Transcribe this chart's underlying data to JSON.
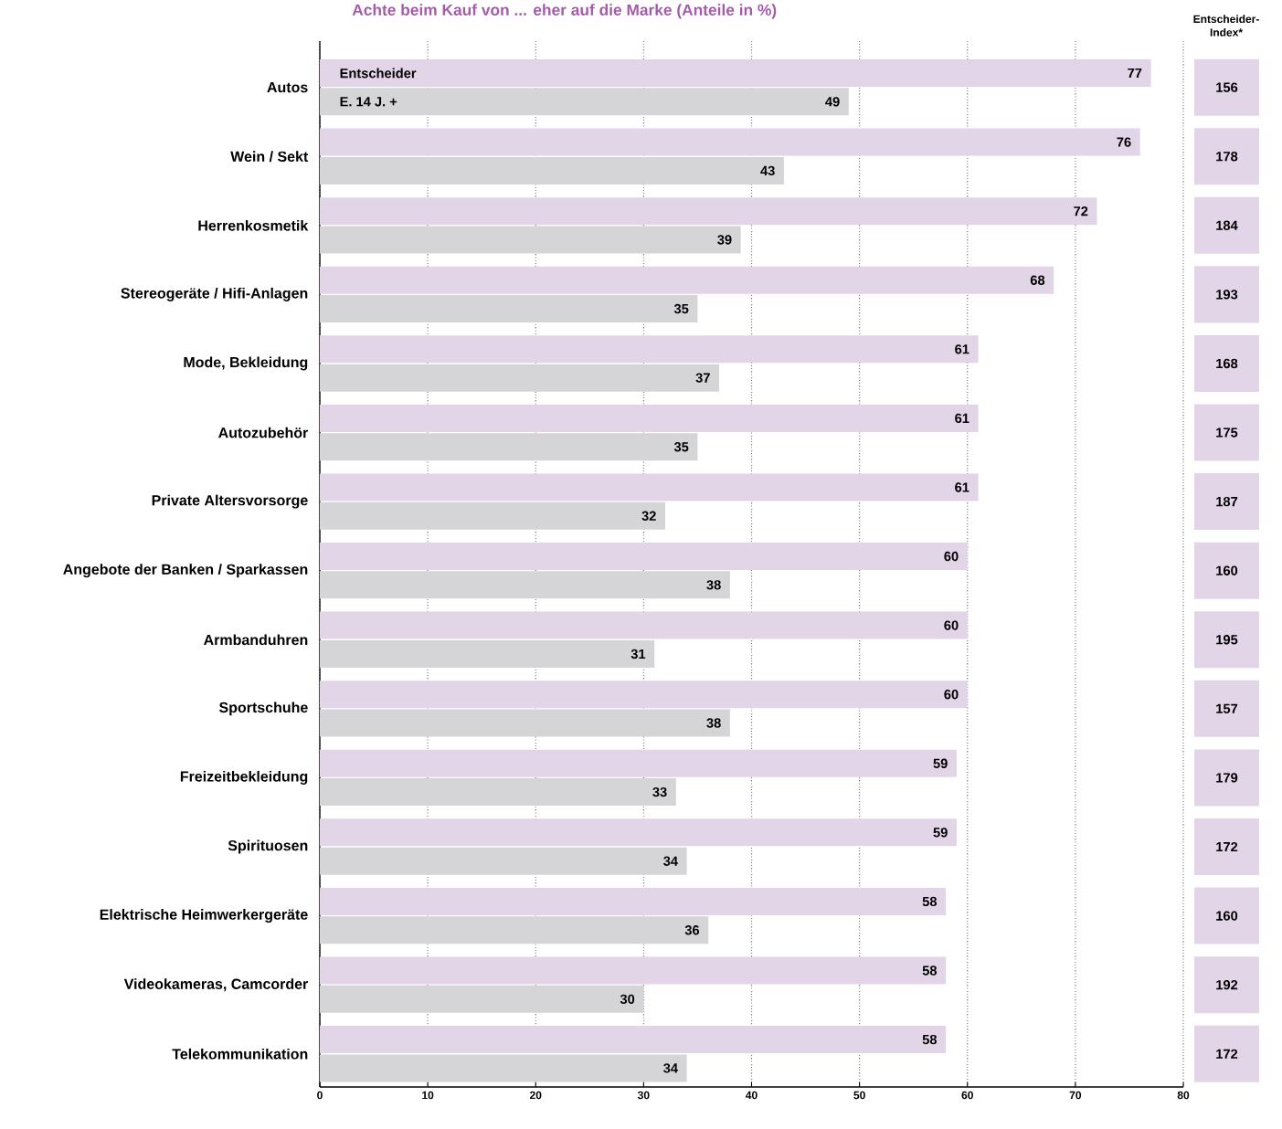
{
  "chart_data": [
    {
      "type": "bar",
      "orientation": "horizontal",
      "title": "Achte beim Kauf von ... eher auf die Marke (Anteile in %)",
      "categories": [
        "Autos",
        "Wein / Sekt",
        "Herrenkosmetik",
        "Stereogeräte / Hifi-Anlagen",
        "Mode, Bekleidung",
        "Autozubehör",
        "Private Altersvorsorge",
        "Angebote der Banken / Sparkassen",
        "Armbanduhren",
        "Sportschuhe",
        "Freizeitbekleidung",
        "Spirituosen",
        "Elektrische Heimwerkergeräte",
        "Videokameras, Camcorder",
        "Telekommunikation"
      ],
      "series": [
        {
          "name": "Entscheider",
          "color": "#e3d5e8",
          "values": [
            77,
            76,
            72,
            68,
            61,
            61,
            61,
            60,
            60,
            60,
            59,
            59,
            58,
            58,
            58
          ]
        },
        {
          "name": "E. 14 J. +",
          "color": "#d5d5d7",
          "values": [
            49,
            43,
            39,
            35,
            37,
            35,
            32,
            38,
            31,
            38,
            33,
            34,
            36,
            30,
            34
          ]
        }
      ],
      "xlim": [
        0,
        80
      ],
      "xticks": [
        0,
        10,
        20,
        30,
        40,
        50,
        60,
        70,
        80
      ],
      "grid": "x",
      "data_labels": true
    },
    {
      "type": "other",
      "title": "Entscheider-Index*",
      "color": "#e3d5e8",
      "data_labels": true,
      "values": [
        156,
        178,
        184,
        193,
        168,
        175,
        187,
        160,
        195,
        157,
        179,
        172,
        160,
        192,
        172
      ]
    }
  ]
}
